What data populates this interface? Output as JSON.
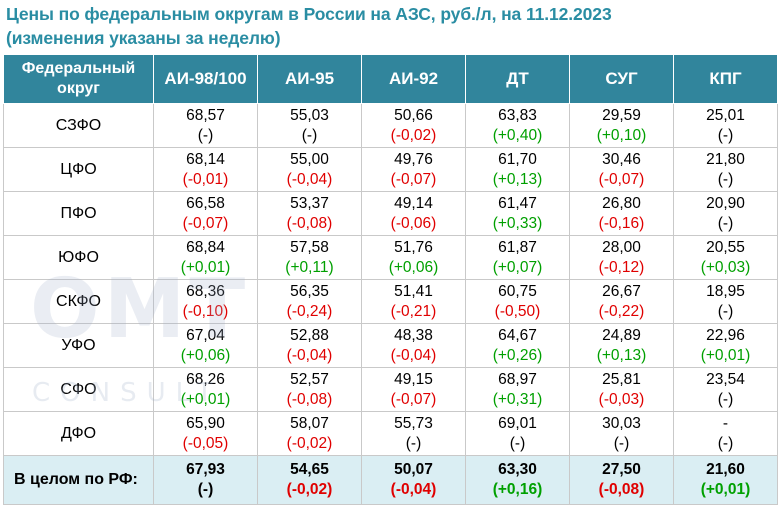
{
  "title_line1": "Цены по федеральным округам в России на АЗС, руб./л, на 11.12.2023",
  "title_line2": "(изменения указаны за неделю)",
  "watermark": {
    "main": "OMT",
    "sub": "CONSULT"
  },
  "colors": {
    "header_bg": "#31859c",
    "total_bg": "#daeef3",
    "title": "#2a8da3",
    "negative": "#e00000",
    "positive": "#00a000"
  },
  "columns": [
    {
      "line1": "Федеральный",
      "line2": "округ"
    },
    {
      "line1": "АИ-98/100"
    },
    {
      "line1": "АИ-95"
    },
    {
      "line1": "АИ-92"
    },
    {
      "line1": "ДТ"
    },
    {
      "line1": "СУГ"
    },
    {
      "line1": "КПГ"
    }
  ],
  "rows": [
    {
      "region": "СЗФО",
      "cells": [
        {
          "v": "68,57",
          "c": "(-)"
        },
        {
          "v": "55,03",
          "c": "(-)"
        },
        {
          "v": "50,66",
          "c": "(-0,02)"
        },
        {
          "v": "63,83",
          "c": "(+0,40)"
        },
        {
          "v": "29,59",
          "c": "(+0,10)"
        },
        {
          "v": "25,01",
          "c": "(-)"
        }
      ]
    },
    {
      "region": "ЦФО",
      "cells": [
        {
          "v": "68,14",
          "c": "(-0,01)"
        },
        {
          "v": "55,00",
          "c": "(-0,04)"
        },
        {
          "v": "49,76",
          "c": "(-0,07)"
        },
        {
          "v": "61,70",
          "c": "(+0,13)"
        },
        {
          "v": "30,46",
          "c": "(-0,07)"
        },
        {
          "v": "21,80",
          "c": "(-)"
        }
      ]
    },
    {
      "region": "ПФО",
      "cells": [
        {
          "v": "66,58",
          "c": "(-0,07)"
        },
        {
          "v": "53,37",
          "c": "(-0,08)"
        },
        {
          "v": "49,14",
          "c": "(-0,06)"
        },
        {
          "v": "61,47",
          "c": "(+0,33)"
        },
        {
          "v": "26,80",
          "c": "(-0,16)"
        },
        {
          "v": "20,90",
          "c": "(-)"
        }
      ]
    },
    {
      "region": "ЮФО",
      "cells": [
        {
          "v": "68,84",
          "c": "(+0,01)"
        },
        {
          "v": "57,58",
          "c": "(+0,11)"
        },
        {
          "v": "51,76",
          "c": "(+0,06)"
        },
        {
          "v": "61,87",
          "c": "(+0,07)"
        },
        {
          "v": "28,00",
          "c": "(-0,12)"
        },
        {
          "v": "20,55",
          "c": "(+0,03)"
        }
      ]
    },
    {
      "region": "СКФО",
      "cells": [
        {
          "v": "68,36",
          "c": "(-0,10)"
        },
        {
          "v": "56,35",
          "c": "(-0,24)"
        },
        {
          "v": "51,41",
          "c": "(-0,21)"
        },
        {
          "v": "60,75",
          "c": "(-0,50)"
        },
        {
          "v": "26,67",
          "c": "(-0,22)"
        },
        {
          "v": "18,95",
          "c": "(-)"
        }
      ]
    },
    {
      "region": "УФО",
      "cells": [
        {
          "v": "67,04",
          "c": "(+0,06)"
        },
        {
          "v": "52,88",
          "c": "(-0,04)"
        },
        {
          "v": "48,38",
          "c": "(-0,04)"
        },
        {
          "v": "64,67",
          "c": "(+0,26)"
        },
        {
          "v": "24,89",
          "c": "(+0,13)"
        },
        {
          "v": "22,96",
          "c": "(+0,01)"
        }
      ]
    },
    {
      "region": "СФО",
      "cells": [
        {
          "v": "68,26",
          "c": "(+0,01)"
        },
        {
          "v": "52,57",
          "c": "(-0,08)"
        },
        {
          "v": "49,15",
          "c": "(-0,07)"
        },
        {
          "v": "68,97",
          "c": "(+0,31)"
        },
        {
          "v": "25,81",
          "c": "(-0,03)"
        },
        {
          "v": "23,54",
          "c": "(-)"
        }
      ]
    },
    {
      "region": "ДФО",
      "cells": [
        {
          "v": "65,90",
          "c": "(-0,05)"
        },
        {
          "v": "58,07",
          "c": "(-0,02)"
        },
        {
          "v": "55,73",
          "c": "(-)"
        },
        {
          "v": "69,01",
          "c": "(-)"
        },
        {
          "v": "30,03",
          "c": "(-)"
        },
        {
          "v": "-",
          "c": "(-)"
        }
      ]
    }
  ],
  "total": {
    "region": "В целом по РФ:",
    "cells": [
      {
        "v": "67,93",
        "c": "(-)"
      },
      {
        "v": "54,65",
        "c": "(-0,02)"
      },
      {
        "v": "50,07",
        "c": "(-0,04)"
      },
      {
        "v": "63,30",
        "c": "(+0,16)"
      },
      {
        "v": "27,50",
        "c": "(-0,08)"
      },
      {
        "v": "21,60",
        "c": "(+0,01)"
      }
    ]
  }
}
